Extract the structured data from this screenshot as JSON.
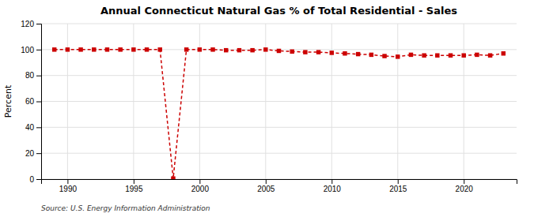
{
  "chart_data": {
    "type": "line",
    "title": "Annual Connecticut Natural Gas % of Total Residential - Sales",
    "ylabel": "Percent",
    "annotations": [
      "Source: U.S. Energy Information Administration"
    ],
    "x": [
      1989,
      1990,
      1991,
      1992,
      1993,
      1994,
      1995,
      1996,
      1997,
      1998,
      1999,
      2000,
      2001,
      2002,
      2003,
      2004,
      2005,
      2006,
      2007,
      2008,
      2009,
      2010,
      2011,
      2012,
      2013,
      2014,
      2015,
      2016,
      2017,
      2018,
      2019,
      2020,
      2021,
      2022,
      2023
    ],
    "values": [
      100.0,
      100.0,
      100.0,
      100.0,
      100.0,
      100.0,
      100.0,
      100.0,
      100.0,
      0.5,
      100.0,
      100.0,
      100.0,
      99.5,
      99.5,
      99.5,
      100.0,
      99.0,
      98.5,
      98.0,
      98.0,
      97.5,
      97.0,
      96.5,
      96.0,
      95.0,
      94.5,
      96.0,
      95.5,
      95.5,
      95.5,
      95.5,
      96.0,
      95.5,
      97.0
    ],
    "color": "#cc0000",
    "marker": "square",
    "line_style": "dashed",
    "xlim": [
      1988,
      2024
    ],
    "ylim": [
      0,
      120
    ],
    "xticks": [
      1990,
      1995,
      2000,
      2005,
      2010,
      2015,
      2020
    ],
    "yticks": [
      0,
      20,
      40,
      60,
      80,
      100,
      120
    ],
    "grid": true
  }
}
